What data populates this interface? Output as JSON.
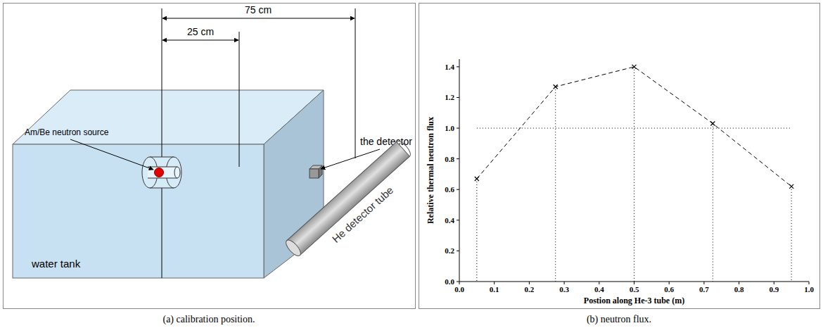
{
  "diagram": {
    "dimensions": [
      "75 cm",
      "25 cm"
    ],
    "labels": {
      "source": "Am/Be neutron source",
      "tank": "water tank",
      "detector": "the detector",
      "tube": "He detector tube"
    },
    "caption": "(a) calibration position."
  },
  "chart_data": {
    "type": "line",
    "x": [
      0.05,
      0.275,
      0.5,
      0.725,
      0.95
    ],
    "values": [
      0.67,
      1.27,
      1.4,
      1.03,
      0.62
    ],
    "hline": 1.0,
    "color": "#000000",
    "marker": "x",
    "line_style": "dashed",
    "xlabel": "Postion along He-3 tube (m)",
    "ylabel": "Relative thermal neutron flux",
    "xlim": [
      0,
      1
    ],
    "xticks": [
      {
        "value": 0,
        "label": "0.0"
      },
      0.1,
      0.2,
      0.3,
      0.4,
      0.5,
      0.6,
      0.7,
      0.8,
      0.9,
      {
        "value": 1,
        "label": "1.0"
      }
    ],
    "ylim": [
      0,
      1.45
    ],
    "yticks": [
      {
        "value": 0,
        "label": "0.0"
      },
      0.2,
      0.4,
      0.6,
      0.8,
      {
        "value": 1,
        "label": "1.0"
      },
      1.2,
      1.4
    ],
    "grid": false,
    "caption": "(b) neutron flux."
  }
}
